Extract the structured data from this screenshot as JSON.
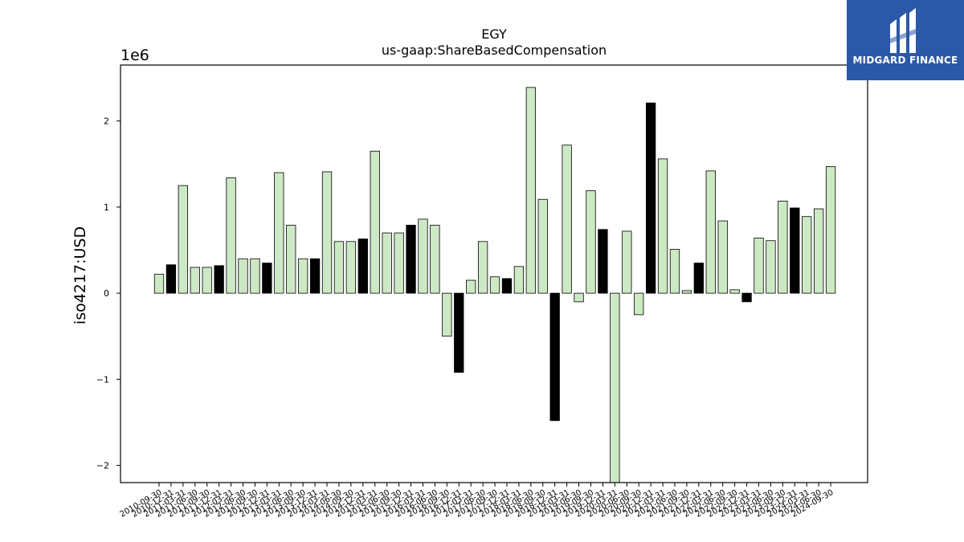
{
  "brand": {
    "name": "MIDGARD FINANCE",
    "color": "#2b58a8"
  },
  "chart_data": {
    "type": "bar",
    "title": "EGY",
    "subtitle": "us-gaap:ShareBasedCompensation",
    "ylabel": "iso4217:USD",
    "xlabel": "",
    "y_scale_label": "1e6",
    "ylim": [
      -2200000,
      2650000
    ],
    "yticks": [
      -2000000,
      -1000000,
      0,
      1000000,
      2000000
    ],
    "ytick_labels": [
      "−2",
      "−1",
      "0",
      "1",
      "2"
    ],
    "grid": false,
    "colors": {
      "default": "#cce8c4",
      "highlight": "#000000",
      "edge": "#000000"
    },
    "categories": [
      "2010-09-30",
      "2010-12-31",
      "2011-03-31",
      "2011-06-30",
      "2011-09-30",
      "2011-12-31",
      "2012-03-31",
      "2012-06-30",
      "2012-09-30",
      "2012-12-31",
      "2013-03-31",
      "2013-06-30",
      "2013-09-30",
      "2013-12-31",
      "2014-03-31",
      "2014-06-30",
      "2014-09-30",
      "2014-12-31",
      "2015-03-31",
      "2015-06-30",
      "2015-09-30",
      "2015-12-31",
      "2016-03-31",
      "2016-06-30",
      "2016-09-30",
      "2016-12-31",
      "2017-03-31",
      "2017-06-30",
      "2017-09-30",
      "2017-12-31",
      "2018-03-31",
      "2018-06-30",
      "2018-09-30",
      "2018-12-31",
      "2019-03-31",
      "2019-06-30",
      "2019-09-30",
      "2019-12-31",
      "2020-03-31",
      "2020-06-30",
      "2020-09-30",
      "2020-12-31",
      "2021-03-31",
      "2021-06-30",
      "2021-09-30",
      "2021-12-31",
      "2022-03-31",
      "2022-06-30",
      "2022-09-30",
      "2022-12-31",
      "2023-03-31",
      "2023-06-30",
      "2023-09-30",
      "2023-12-31",
      "2024-03-31",
      "2024-06-30",
      "2024-09-30"
    ],
    "values": [
      220000,
      330000,
      1250000,
      300000,
      300000,
      320000,
      1340000,
      400000,
      400000,
      350000,
      1400000,
      790000,
      400000,
      400000,
      1410000,
      600000,
      600000,
      630000,
      1650000,
      700000,
      700000,
      790000,
      860000,
      790000,
      -500000,
      -920000,
      150000,
      600000,
      190000,
      170000,
      310000,
      2390000,
      1090000,
      -1480000,
      1720000,
      -100000,
      1190000,
      740000,
      -2230000,
      720000,
      -250000,
      2210000,
      1560000,
      510000,
      30000,
      350000,
      1420000,
      840000,
      40000,
      -100000,
      640000,
      610000,
      1070000,
      990000,
      890000,
      980000,
      1470000
    ],
    "highlight": [
      false,
      true,
      false,
      false,
      false,
      true,
      false,
      false,
      false,
      true,
      false,
      false,
      false,
      true,
      false,
      false,
      false,
      true,
      false,
      false,
      false,
      true,
      false,
      false,
      false,
      true,
      false,
      false,
      false,
      true,
      false,
      false,
      false,
      true,
      false,
      false,
      false,
      true,
      false,
      false,
      false,
      true,
      false,
      false,
      false,
      true,
      false,
      false,
      false,
      true,
      false,
      false,
      false,
      true,
      false,
      false,
      false
    ]
  }
}
